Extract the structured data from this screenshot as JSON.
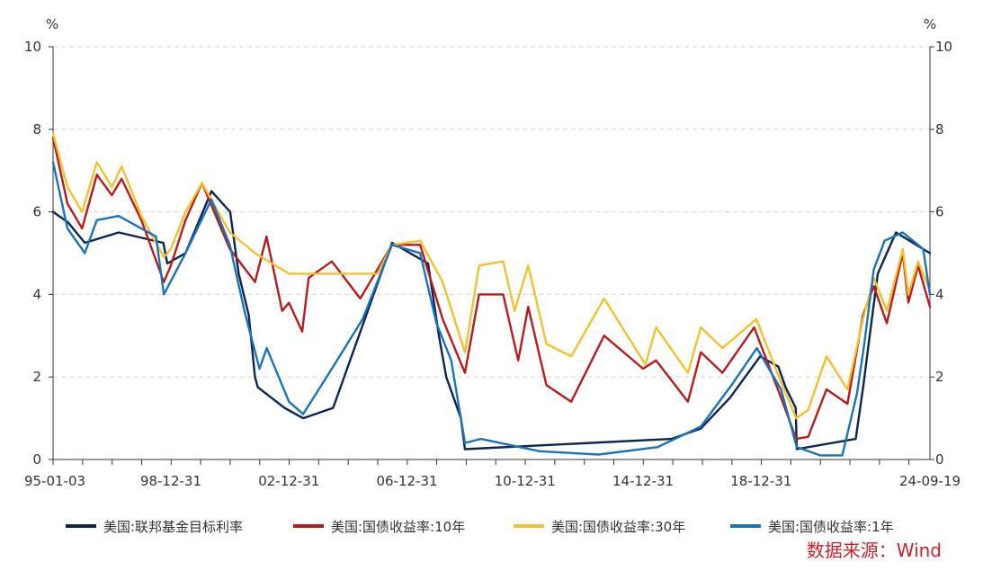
{
  "chart_data": {
    "type": "line",
    "unit_left": "%",
    "unit_right": "%",
    "x_range": [
      "1995-01-03",
      "2024-09-19"
    ],
    "x_tick_labels": [
      "95-01-03",
      "98-12-31",
      "02-12-31",
      "06-12-31",
      "10-12-31",
      "14-12-31",
      "18-12-31",
      "24-09-19"
    ],
    "ylim": [
      0,
      10
    ],
    "y_ticks": [
      0,
      2,
      4,
      6,
      8,
      10
    ],
    "grid": true,
    "legend_position": "bottom",
    "series": [
      {
        "name": "美国:联邦基金目标利率",
        "color": "#0d2452",
        "points": [
          [
            "1995-01-03",
            6.0
          ],
          [
            "1995-07-06",
            5.75
          ],
          [
            "1996-01-31",
            5.25
          ],
          [
            "1997-03-25",
            5.5
          ],
          [
            "1998-09-29",
            5.25
          ],
          [
            "1998-11-17",
            4.75
          ],
          [
            "1999-06-30",
            5.0
          ],
          [
            "2000-05-16",
            6.5
          ],
          [
            "2001-01-03",
            6.0
          ],
          [
            "2001-04-18",
            4.5
          ],
          [
            "2001-08-21",
            3.5
          ],
          [
            "2001-11-06",
            2.0
          ],
          [
            "2001-12-11",
            1.75
          ],
          [
            "2002-11-06",
            1.25
          ],
          [
            "2003-06-25",
            1.0
          ],
          [
            "2004-06-30",
            1.25
          ],
          [
            "2005-06-30",
            3.25
          ],
          [
            "2006-06-29",
            5.25
          ],
          [
            "2007-09-18",
            4.75
          ],
          [
            "2008-01-30",
            3.0
          ],
          [
            "2008-04-30",
            2.0
          ],
          [
            "2008-10-29",
            1.0
          ],
          [
            "2008-12-16",
            0.25
          ],
          [
            "2015-12-16",
            0.5
          ],
          [
            "2016-12-14",
            0.75
          ],
          [
            "2017-12-13",
            1.5
          ],
          [
            "2018-12-19",
            2.5
          ],
          [
            "2019-07-31",
            2.25
          ],
          [
            "2019-10-30",
            1.75
          ],
          [
            "2020-03-03",
            1.25
          ],
          [
            "2020-03-16",
            0.25
          ],
          [
            "2022-03-16",
            0.5
          ],
          [
            "2022-06-15",
            1.75
          ],
          [
            "2022-09-21",
            3.25
          ],
          [
            "2022-12-14",
            4.5
          ],
          [
            "2023-07-26",
            5.5
          ],
          [
            "2024-09-18",
            5.0
          ],
          [
            "2024-09-19",
            5.0
          ]
        ]
      },
      {
        "name": "美国:国债收益率:10年",
        "color": "#b51c1c",
        "points": [
          [
            "1995-01-03",
            7.8
          ],
          [
            "1995-06-30",
            6.2
          ],
          [
            "1995-12-29",
            5.6
          ],
          [
            "1996-06-28",
            6.9
          ],
          [
            "1996-12-31",
            6.4
          ],
          [
            "1997-04-30",
            6.8
          ],
          [
            "1997-12-31",
            5.8
          ],
          [
            "1998-10-05",
            4.3
          ],
          [
            "1998-12-31",
            4.7
          ],
          [
            "1999-06-30",
            5.8
          ],
          [
            "2000-01-20",
            6.7
          ],
          [
            "2000-12-29",
            5.1
          ],
          [
            "2001-11-07",
            4.3
          ],
          [
            "2002-03-29",
            5.4
          ],
          [
            "2002-10-09",
            3.6
          ],
          [
            "2002-12-31",
            3.8
          ],
          [
            "2003-06-13",
            3.1
          ],
          [
            "2003-09-01",
            4.4
          ],
          [
            "2004-06-14",
            4.8
          ],
          [
            "2005-06-01",
            3.9
          ],
          [
            "2006-06-28",
            5.2
          ],
          [
            "2007-06-12",
            5.2
          ],
          [
            "2008-03-17",
            3.4
          ],
          [
            "2008-12-18",
            2.1
          ],
          [
            "2009-06-10",
            4.0
          ],
          [
            "2010-04-05",
            4.0
          ],
          [
            "2010-10-08",
            2.4
          ],
          [
            "2011-02-08",
            3.7
          ],
          [
            "2011-09-22",
            1.8
          ],
          [
            "2012-07-24",
            1.4
          ],
          [
            "2013-09-05",
            3.0
          ],
          [
            "2014-12-31",
            2.2
          ],
          [
            "2015-06-10",
            2.4
          ],
          [
            "2016-07-08",
            1.4
          ],
          [
            "2016-12-15",
            2.6
          ],
          [
            "2017-09-08",
            2.1
          ],
          [
            "2018-10-05",
            3.2
          ],
          [
            "2019-09-03",
            1.5
          ],
          [
            "2020-03-09",
            0.5
          ],
          [
            "2020-08-04",
            0.55
          ],
          [
            "2021-03-19",
            1.7
          ],
          [
            "2021-12-03",
            1.35
          ],
          [
            "2022-06-14",
            3.5
          ],
          [
            "2022-10-24",
            4.2
          ],
          [
            "2023-04-05",
            3.3
          ],
          [
            "2023-10-19",
            5.0
          ],
          [
            "2023-12-27",
            3.8
          ],
          [
            "2024-04-25",
            4.7
          ],
          [
            "2024-09-19",
            3.7
          ]
        ]
      },
      {
        "name": "美国:国债收益率:30年",
        "color": "#f2c12e",
        "points": [
          [
            "1995-01-03",
            7.9
          ],
          [
            "1995-06-30",
            6.6
          ],
          [
            "1995-12-29",
            6.0
          ],
          [
            "1996-06-28",
            7.2
          ],
          [
            "1996-12-31",
            6.6
          ],
          [
            "1997-04-30",
            7.1
          ],
          [
            "1997-12-31",
            5.9
          ],
          [
            "1998-10-05",
            4.9
          ],
          [
            "1998-12-31",
            5.1
          ],
          [
            "1999-06-30",
            6.0
          ],
          [
            "2000-01-20",
            6.7
          ],
          [
            "2000-12-29",
            5.5
          ],
          [
            "2001-11-07",
            5.0
          ],
          [
            "2002-12-31",
            4.5
          ],
          [
            "2005-12-31",
            4.5
          ],
          [
            "2006-06-28",
            5.2
          ],
          [
            "2007-06-12",
            5.3
          ],
          [
            "2008-03-17",
            4.3
          ],
          [
            "2008-12-18",
            2.6
          ],
          [
            "2009-06-10",
            4.7
          ],
          [
            "2010-04-05",
            4.8
          ],
          [
            "2010-08-24",
            3.6
          ],
          [
            "2011-02-08",
            4.7
          ],
          [
            "2011-09-22",
            2.8
          ],
          [
            "2012-07-24",
            2.5
          ],
          [
            "2013-09-05",
            3.9
          ],
          [
            "2015-01-30",
            2.3
          ],
          [
            "2015-06-10",
            3.2
          ],
          [
            "2016-07-08",
            2.1
          ],
          [
            "2016-12-15",
            3.2
          ],
          [
            "2017-09-08",
            2.7
          ],
          [
            "2018-11-02",
            3.4
          ],
          [
            "2019-08-28",
            1.9
          ],
          [
            "2020-03-09",
            1.0
          ],
          [
            "2020-08-04",
            1.2
          ],
          [
            "2021-03-19",
            2.5
          ],
          [
            "2021-12-03",
            1.7
          ],
          [
            "2022-06-14",
            3.4
          ],
          [
            "2022-10-24",
            4.4
          ],
          [
            "2023-04-05",
            3.6
          ],
          [
            "2023-10-19",
            5.1
          ],
          [
            "2023-12-27",
            4.0
          ],
          [
            "2024-04-25",
            4.8
          ],
          [
            "2024-09-19",
            4.1
          ]
        ]
      },
      {
        "name": "美国:国债收益率:1年",
        "color": "#1a72b8",
        "points": [
          [
            "1995-01-03",
            7.2
          ],
          [
            "1995-06-30",
            5.6
          ],
          [
            "1996-01-31",
            5.0
          ],
          [
            "1996-06-28",
            5.8
          ],
          [
            "1997-03-25",
            5.9
          ],
          [
            "1998-06-30",
            5.4
          ],
          [
            "1998-10-05",
            4.0
          ],
          [
            "1999-06-30",
            5.0
          ],
          [
            "2000-05-16",
            6.3
          ],
          [
            "2000-12-29",
            5.2
          ],
          [
            "2001-06-29",
            3.6
          ],
          [
            "2001-12-31",
            2.2
          ],
          [
            "2002-04-01",
            2.7
          ],
          [
            "2002-12-31",
            1.4
          ],
          [
            "2003-06-25",
            1.1
          ],
          [
            "2004-06-14",
            2.2
          ],
          [
            "2005-06-30",
            3.4
          ],
          [
            "2006-06-29",
            5.2
          ],
          [
            "2007-06-12",
            5.0
          ],
          [
            "2007-12-31",
            3.3
          ],
          [
            "2008-06-30",
            2.4
          ],
          [
            "2008-12-18",
            0.4
          ],
          [
            "2009-06-30",
            0.5
          ],
          [
            "2011-06-30",
            0.2
          ],
          [
            "2013-06-28",
            0.12
          ],
          [
            "2015-06-30",
            0.3
          ],
          [
            "2016-12-15",
            0.8
          ],
          [
            "2017-12-29",
            1.8
          ],
          [
            "2018-11-08",
            2.7
          ],
          [
            "2019-09-03",
            1.7
          ],
          [
            "2020-03-16",
            0.3
          ],
          [
            "2020-12-31",
            0.1
          ],
          [
            "2021-09-30",
            0.1
          ],
          [
            "2022-03-31",
            1.6
          ],
          [
            "2022-06-30",
            2.8
          ],
          [
            "2022-10-24",
            4.6
          ],
          [
            "2023-03-08",
            5.3
          ],
          [
            "2023-10-19",
            5.5
          ],
          [
            "2024-06-28",
            5.1
          ],
          [
            "2024-09-19",
            4.0
          ]
        ]
      }
    ]
  },
  "source_note": "数据来源：Wind"
}
